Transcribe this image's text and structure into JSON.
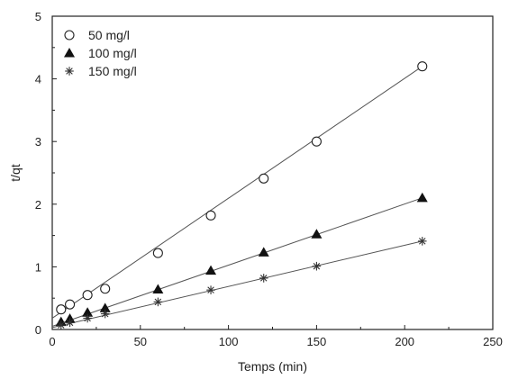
{
  "chart_data": {
    "type": "scatter",
    "xlabel": "Temps (min)",
    "ylabel": "t/qt",
    "xlim": [
      0,
      250
    ],
    "ylim": [
      0,
      5
    ],
    "xticks": [
      0,
      50,
      100,
      150,
      200,
      250
    ],
    "yticks": [
      0,
      1,
      2,
      3,
      4,
      5
    ],
    "grid": false,
    "legend_position": "top-left",
    "series": [
      {
        "name": "50 mg/l",
        "marker": "open-circle",
        "x": [
          5,
          10,
          20,
          30,
          60,
          90,
          120,
          150,
          210
        ],
        "y": [
          0.32,
          0.4,
          0.55,
          0.65,
          1.22,
          1.82,
          2.41,
          3.0,
          4.2
        ],
        "fit": [
          [
            0,
            0.18
          ],
          [
            210,
            4.2
          ]
        ]
      },
      {
        "name": "100 mg/l",
        "marker": "filled-triangle",
        "x": [
          5,
          10,
          20,
          30,
          60,
          90,
          120,
          150,
          210
        ],
        "y": [
          0.12,
          0.17,
          0.27,
          0.34,
          0.64,
          0.94,
          1.23,
          1.52,
          2.1
        ],
        "fit": [
          [
            0,
            0.05
          ],
          [
            210,
            2.1
          ]
        ]
      },
      {
        "name": "150 mg/l",
        "marker": "asterisk",
        "x": [
          5,
          10,
          20,
          30,
          60,
          90,
          120,
          150,
          210
        ],
        "y": [
          0.07,
          0.11,
          0.18,
          0.25,
          0.44,
          0.63,
          0.82,
          1.01,
          1.41
        ],
        "fit": [
          [
            0,
            0.03
          ],
          [
            210,
            1.41
          ]
        ]
      }
    ]
  }
}
